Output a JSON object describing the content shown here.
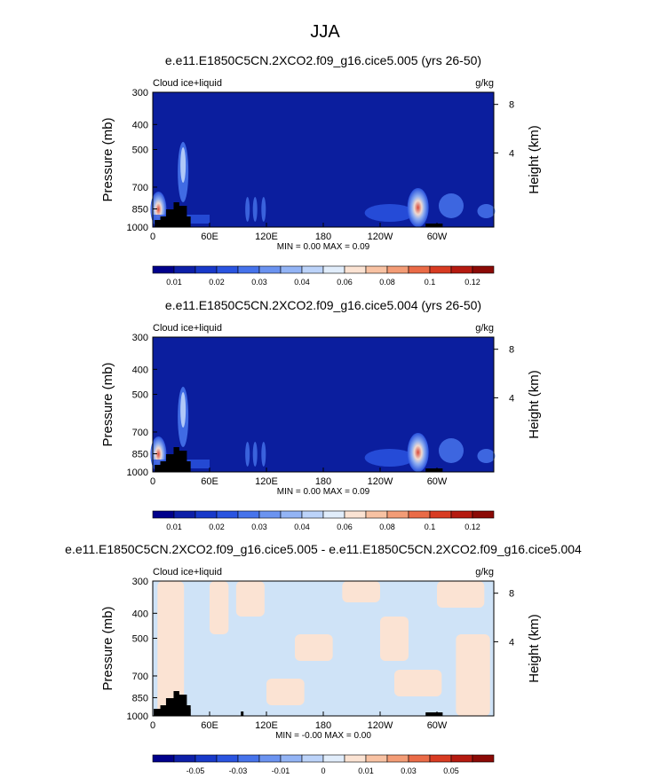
{
  "page_title": "JJA",
  "colors": {
    "field_background": "#0b1e9e",
    "diff_background": "#cfe3f7",
    "diff_positive": "#fbe3d3",
    "land": "#000000",
    "palette_field": [
      "#00008b",
      "#0d1fa8",
      "#1839c9",
      "#2a54e0",
      "#4673eb",
      "#6b93f0",
      "#93b4f5",
      "#bcd3f9",
      "#e1edfb",
      "#fbe3d3",
      "#f8c2a3",
      "#f39c76",
      "#ea6b47",
      "#d83b22",
      "#b51a10",
      "#8b0a06"
    ],
    "palette_diff": [
      "#00008b",
      "#0d1fa8",
      "#1839c9",
      "#2a54e0",
      "#4673eb",
      "#6b93f0",
      "#93b4f5",
      "#bcd3f9",
      "#e1edfb",
      "#fbe3d3",
      "#f8c2a3",
      "#f39c76",
      "#ea6b47",
      "#d83b22",
      "#b51a10",
      "#8b0a06"
    ]
  },
  "chart_data": [
    {
      "type": "heatmap",
      "title": "e.e11.E1850C5CN.2XCO2.f09_g16.cice5.005 (yrs 26-50)",
      "left_label": "Cloud ice+liquid",
      "right_label": "g/kg",
      "ylabel": "Pressure (mb)",
      "ylabel_right": "Height (km)",
      "x_ticks": [
        "0",
        "60E",
        "120E",
        "180",
        "120W",
        "60W"
      ],
      "y_ticks": [
        "300",
        "400",
        "500",
        "700",
        "850",
        "1000"
      ],
      "right_ticks": [
        "8",
        "4"
      ],
      "stats": "MIN =   0.00  MAX =   0.09",
      "colorbar_labels": [
        "0.01",
        "0.02",
        "0.03",
        "0.04",
        "0.06",
        "0.08",
        "0.1",
        "0.12"
      ],
      "x_range_deg": [
        0,
        360
      ],
      "y_range_mb": [
        300,
        1000
      ]
    },
    {
      "type": "heatmap",
      "title": "e.e11.E1850C5CN.2XCO2.f09_g16.cice5.004 (yrs 26-50)",
      "left_label": "Cloud ice+liquid",
      "right_label": "g/kg",
      "ylabel": "Pressure (mb)",
      "ylabel_right": "Height (km)",
      "x_ticks": [
        "0",
        "60E",
        "120E",
        "180",
        "120W",
        "60W"
      ],
      "y_ticks": [
        "300",
        "400",
        "500",
        "700",
        "850",
        "1000"
      ],
      "right_ticks": [
        "8",
        "4"
      ],
      "stats": "MIN =   0.00  MAX =   0.09",
      "colorbar_labels": [
        "0.01",
        "0.02",
        "0.03",
        "0.04",
        "0.06",
        "0.08",
        "0.1",
        "0.12"
      ],
      "x_range_deg": [
        0,
        360
      ],
      "y_range_mb": [
        300,
        1000
      ]
    },
    {
      "type": "heatmap",
      "title": "e.e11.E1850C5CN.2XCO2.f09_g16.cice5.005 - e.e11.E1850C5CN.2XCO2.f09_g16.cice5.004",
      "left_label": "Cloud ice+liquid",
      "right_label": "g/kg",
      "ylabel": "Pressure (mb)",
      "ylabel_right": "Height (km)",
      "x_ticks": [
        "0",
        "60E",
        "120E",
        "180",
        "120W",
        "60W"
      ],
      "y_ticks": [
        "300",
        "400",
        "500",
        "700",
        "850",
        "1000"
      ],
      "right_ticks": [
        "8",
        "4"
      ],
      "stats": "MIN =  -0.00  MAX =   0.00",
      "colorbar_labels": [
        "-0.05",
        "-0.03",
        "-0.01",
        "0",
        "0.01",
        "0.03",
        "0.05"
      ],
      "x_range_deg": [
        0,
        360
      ],
      "y_range_mb": [
        300,
        1000
      ]
    }
  ]
}
